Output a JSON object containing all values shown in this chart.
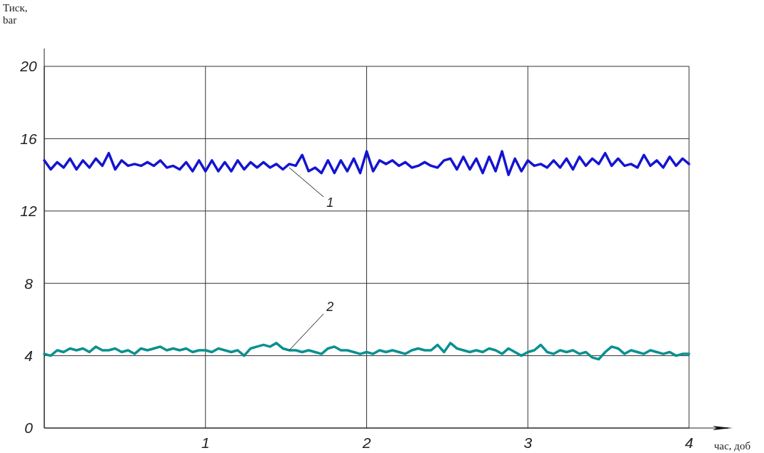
{
  "chart_data": {
    "type": "line",
    "xlabel": "час, доб",
    "ylabel": "Тиск, bar",
    "x": [
      0,
      0.04,
      0.08,
      0.12,
      0.16,
      0.2,
      0.24,
      0.28,
      0.32,
      0.36,
      0.4,
      0.44,
      0.48,
      0.52,
      0.56,
      0.6,
      0.64,
      0.68,
      0.72,
      0.76,
      0.8,
      0.84,
      0.88,
      0.92,
      0.96,
      1,
      1.04,
      1.08,
      1.12,
      1.16,
      1.2,
      1.24,
      1.28,
      1.32,
      1.36,
      1.4,
      1.44,
      1.48,
      1.52,
      1.56,
      1.6,
      1.64,
      1.68,
      1.72,
      1.76,
      1.8,
      1.84,
      1.88,
      1.92,
      1.96,
      2,
      2.04,
      2.08,
      2.12,
      2.16,
      2.2,
      2.24,
      2.28,
      2.32,
      2.36,
      2.4,
      2.44,
      2.48,
      2.52,
      2.56,
      2.6,
      2.64,
      2.68,
      2.72,
      2.76,
      2.8,
      2.84,
      2.88,
      2.92,
      2.96,
      3,
      3.04,
      3.08,
      3.12,
      3.16,
      3.2,
      3.24,
      3.28,
      3.32,
      3.36,
      3.4,
      3.44,
      3.48,
      3.52,
      3.56,
      3.6,
      3.64,
      3.68,
      3.72,
      3.76,
      3.8,
      3.84,
      3.88,
      3.92,
      3.96,
      4
    ],
    "series": [
      {
        "color": "#1414d2",
        "values": [
          14.8,
          14.3,
          14.7,
          14.4,
          14.9,
          14.3,
          14.8,
          14.4,
          14.9,
          14.5,
          15.2,
          14.3,
          14.8,
          14.5,
          14.6,
          14.5,
          14.7,
          14.5,
          14.8,
          14.4,
          14.5,
          14.3,
          14.7,
          14.2,
          14.8,
          14.2,
          14.8,
          14.2,
          14.7,
          14.2,
          14.8,
          14.3,
          14.7,
          14.4,
          14.7,
          14.4,
          14.6,
          14.3,
          14.6,
          14.5,
          15.1,
          14.2,
          14.4,
          14.1,
          14.8,
          14.1,
          14.8,
          14.2,
          14.9,
          14.1,
          15.3,
          14.2,
          14.8,
          14.6,
          14.8,
          14.5,
          14.7,
          14.4,
          14.5,
          14.7,
          14.5,
          14.4,
          14.8,
          14.9,
          14.3,
          15.0,
          14.3,
          14.9,
          14.1,
          15.0,
          14.2,
          15.3,
          14.0,
          14.9,
          14.2,
          14.8,
          14.5,
          14.6,
          14.4,
          14.8,
          14.4,
          14.9,
          14.3,
          15.0,
          14.5,
          14.9,
          14.6,
          15.2,
          14.5,
          14.9,
          14.5,
          14.6,
          14.4,
          15.1,
          14.5,
          14.8,
          14.4,
          15.0,
          14.5,
          14.9,
          14.6
        ]
      },
      {
        "color": "#0a9090",
        "values": [
          4.1,
          4.0,
          4.3,
          4.2,
          4.4,
          4.3,
          4.4,
          4.2,
          4.5,
          4.3,
          4.3,
          4.4,
          4.2,
          4.3,
          4.1,
          4.4,
          4.3,
          4.4,
          4.5,
          4.3,
          4.4,
          4.3,
          4.4,
          4.2,
          4.3,
          4.3,
          4.2,
          4.4,
          4.3,
          4.2,
          4.3,
          4.0,
          4.4,
          4.5,
          4.6,
          4.5,
          4.7,
          4.4,
          4.3,
          4.3,
          4.2,
          4.3,
          4.2,
          4.1,
          4.4,
          4.5,
          4.3,
          4.3,
          4.2,
          4.1,
          4.2,
          4.1,
          4.3,
          4.2,
          4.3,
          4.2,
          4.1,
          4.3,
          4.4,
          4.3,
          4.3,
          4.6,
          4.2,
          4.7,
          4.4,
          4.3,
          4.2,
          4.3,
          4.2,
          4.4,
          4.3,
          4.1,
          4.4,
          4.2,
          4.0,
          4.2,
          4.3,
          4.6,
          4.2,
          4.1,
          4.3,
          4.2,
          4.3,
          4.1,
          4.2,
          3.9,
          3.8,
          4.2,
          4.5,
          4.4,
          4.1,
          4.3,
          4.2,
          4.1,
          4.3,
          4.2,
          4.1,
          4.2,
          4.0,
          4.1,
          4.1
        ]
      }
    ],
    "annotations": [
      {
        "text": "1",
        "x": 1.52,
        "y": 14.4
      },
      {
        "text": "2",
        "x": 1.52,
        "y": 4.3
      }
    ],
    "xlim": [
      0,
      4
    ],
    "xticks": [
      {
        "value": 0,
        "label": null
      },
      1,
      2,
      3,
      4
    ],
    "ylim": [
      0,
      20
    ],
    "yticks": [
      0,
      4,
      8,
      12,
      16,
      20
    ],
    "grid": true,
    "marker": "none",
    "line_style": "solid"
  }
}
